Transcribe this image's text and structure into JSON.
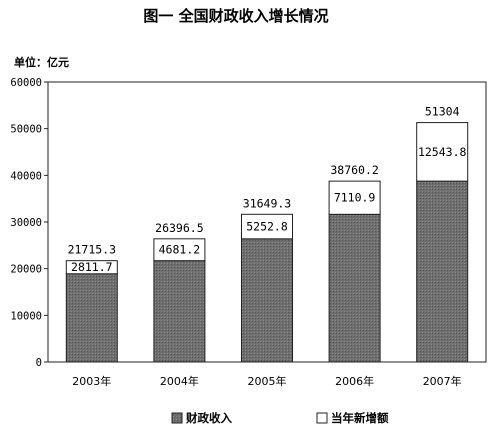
{
  "chart_data": {
    "type": "bar",
    "stacked": true,
    "title": "图一    全国财政收入增长情况",
    "unit_label": "单位：亿元",
    "categories": [
      "2003年",
      "2004年",
      "2005年",
      "2006年",
      "2007年"
    ],
    "series": [
      {
        "name": "财政收入",
        "values": [
          18903.6,
          21715.3,
          26396.5,
          31649.3,
          38760.2
        ],
        "color": "#6e6e6e",
        "pattern": "dark-gray"
      },
      {
        "name": "当年新增额",
        "values": [
          2811.7,
          4681.2,
          5252.8,
          7110.9,
          12543.8
        ],
        "color": "#ffffff",
        "pattern": "white"
      }
    ],
    "total_labels": [
      "21715.3",
      "26396.5",
      "31649.3",
      "38760.2",
      "51304"
    ],
    "increment_labels": [
      "2811.7",
      "4681.2",
      "5252.8",
      "7110.9",
      "12543.8"
    ],
    "ylim": [
      0,
      60000
    ],
    "yticks": [
      "0",
      "10000",
      "20000",
      "30000",
      "40000",
      "50000",
      "60000"
    ],
    "grid": false,
    "legend_position": "bottom"
  }
}
